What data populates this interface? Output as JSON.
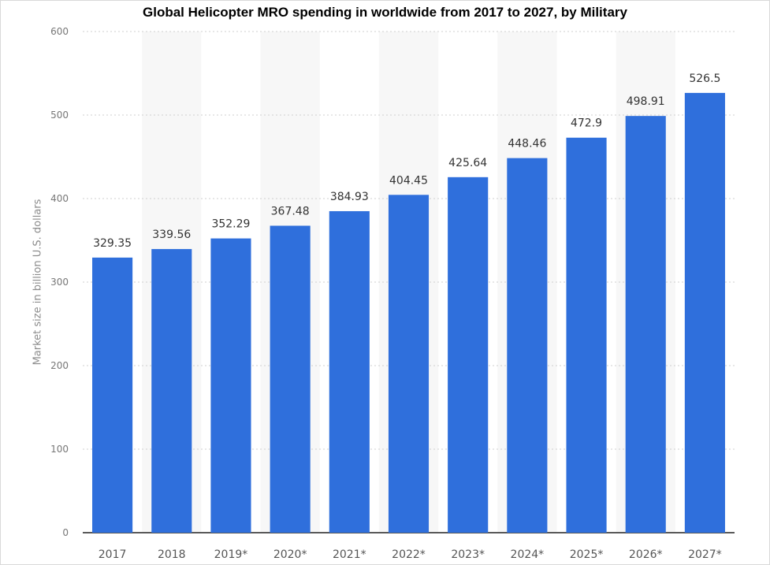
{
  "chart_data": {
    "type": "bar",
    "title": "Global Helicopter MRO spending in worldwide from 2017 to 2027, by Military",
    "xlabel": "",
    "ylabel": "Market size in billion U.S. dollars",
    "ylim": [
      0,
      600
    ],
    "yticks": [
      0,
      100,
      200,
      300,
      400,
      500,
      600
    ],
    "grid": true,
    "bar_color": "#2f6fdc",
    "categories": [
      "2017",
      "2018",
      "2019*",
      "2020*",
      "2021*",
      "2022*",
      "2023*",
      "2024*",
      "2025*",
      "2026*",
      "2027*"
    ],
    "values": [
      329.35,
      339.56,
      352.29,
      367.48,
      384.93,
      404.45,
      425.64,
      448.46,
      472.9,
      498.91,
      526.5
    ],
    "value_labels": [
      "329.35",
      "339.56",
      "352.29",
      "367.48",
      "384.93",
      "404.45",
      "425.64",
      "448.46",
      "472.9",
      "498.91",
      "526.5"
    ]
  }
}
